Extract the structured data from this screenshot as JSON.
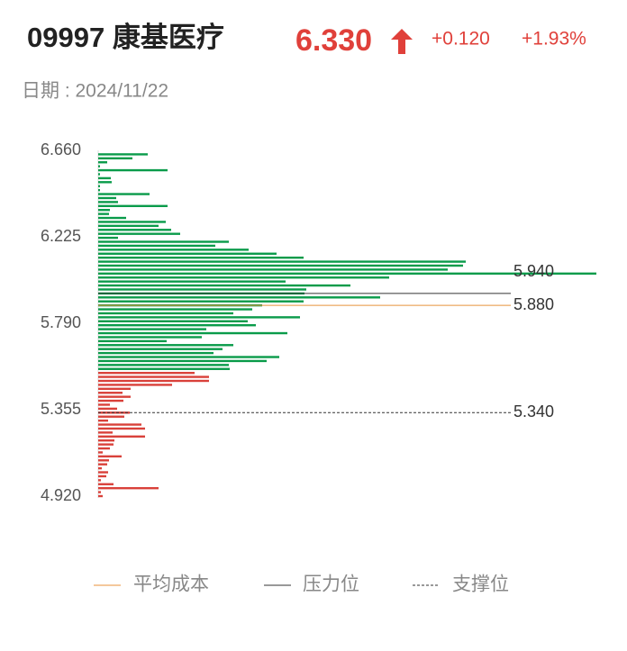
{
  "header": {
    "code_name": "09997 康基医疗",
    "price": "6.330",
    "change": "+0.120",
    "change_pct": "+1.93%",
    "date": "日期 : 2024/11/22"
  },
  "chart_data": {
    "type": "chip-distribution",
    "ylim": [
      4.92,
      6.66
    ],
    "yticks": [
      {
        "value": 6.66,
        "label": "6.660"
      },
      6.225,
      {
        "value": 5.79,
        "label": "5.790"
      },
      5.355,
      {
        "value": 4.92,
        "label": "4.920"
      }
    ],
    "xlim": [
      0,
      560
    ],
    "upper": {
      "color": "#0a9b4a",
      "prices": [
        6.64,
        6.62,
        6.6,
        6.58,
        6.56,
        6.54,
        6.52,
        6.5,
        6.48,
        6.46,
        6.44,
        6.42,
        6.4,
        6.38,
        6.36,
        6.34,
        6.32,
        6.3,
        6.28,
        6.26,
        6.24,
        6.22,
        6.2,
        6.18,
        6.16,
        6.14,
        6.12,
        6.1,
        6.08,
        6.06,
        6.04,
        6.02,
        6,
        5.98,
        5.96,
        5.94,
        5.92,
        5.9,
        5.88,
        5.86,
        5.84,
        5.82,
        5.8,
        5.78,
        5.76,
        5.74,
        5.72,
        5.7,
        5.68,
        5.66,
        5.64,
        5.62,
        5.6,
        5.58,
        5.56
      ],
      "values": [
        55,
        38,
        10,
        2,
        77,
        2,
        14,
        15,
        2,
        2,
        57,
        20,
        22,
        77,
        13,
        12,
        31,
        75,
        67,
        81,
        91,
        22,
        145,
        130,
        167,
        198,
        228,
        408,
        405,
        388,
        553,
        323,
        208,
        280,
        231,
        229,
        313,
        228,
        182,
        171,
        150,
        224,
        166,
        175,
        120,
        210,
        115,
        76,
        150,
        138,
        128,
        201,
        187,
        145,
        146
      ]
    },
    "lower": {
      "color": "#d9413a",
      "prices": [
        5.54,
        5.52,
        5.5,
        5.48,
        5.46,
        5.44,
        5.42,
        5.4,
        5.38,
        5.36,
        5.34,
        5.32,
        5.3,
        5.28,
        5.26,
        5.24,
        5.22,
        5.2,
        5.18,
        5.16,
        5.14,
        5.12,
        5.1,
        5.08,
        5.06,
        5.04,
        5.02,
        5,
        4.98,
        4.96,
        4.94,
        4.92
      ],
      "values": [
        107,
        123,
        123,
        82,
        36,
        27,
        36,
        28,
        13,
        21,
        35,
        29,
        11,
        48,
        52,
        16,
        52,
        18,
        17,
        13,
        5,
        26,
        12,
        10,
        4,
        11,
        9,
        3,
        17,
        67,
        3,
        5
      ]
    },
    "levels": [
      {
        "name": "平均成本",
        "value": 5.88,
        "label": "5.880",
        "color": "#e8923a",
        "style": "solid"
      },
      {
        "name": "压力位",
        "value": 5.94,
        "label": "5.940",
        "color": "#333333",
        "style": "solid"
      },
      {
        "name": "支撑位",
        "value": 5.34,
        "label": "5.340",
        "color": "#333333",
        "style": "dashed"
      }
    ]
  }
}
